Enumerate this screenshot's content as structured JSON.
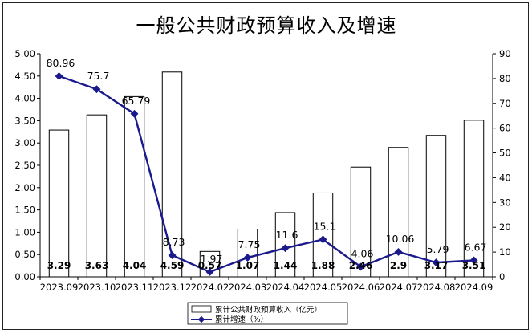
{
  "chart_data": {
    "type": "bar",
    "title": "一般公共财政预算收入及增速",
    "categories": [
      "2023.09",
      "2023.10",
      "2023.11",
      "2023.12",
      "2024.02",
      "2024.03",
      "2024.04",
      "2024.05",
      "2024.06",
      "2024.07",
      "2024.08",
      "2024.09"
    ],
    "series": [
      {
        "name": "累计公共财政预算收入（亿元）",
        "type": "bar",
        "axis": "left",
        "values": [
          3.29,
          3.63,
          4.04,
          4.59,
          0.57,
          1.07,
          1.44,
          1.88,
          2.46,
          2.9,
          3.17,
          3.51
        ],
        "labels": [
          "3.29",
          "3.63",
          "4.04",
          "4.59",
          "0.57",
          "1.07",
          "1.44",
          "1.88",
          "2.46",
          "2.9",
          "3.17",
          "3.51"
        ],
        "color": "#ffffff",
        "border": "#000000"
      },
      {
        "name": "累计增速（%）",
        "type": "line",
        "axis": "right",
        "values": [
          80.96,
          75.7,
          65.79,
          8.73,
          1.97,
          7.75,
          11.6,
          15.1,
          4.06,
          10.06,
          5.79,
          6.67
        ],
        "labels": [
          "80.96",
          "75.7",
          "65.79",
          "8.73",
          "1.97",
          "7.75",
          "11.6",
          "15.1",
          "4.06",
          "10.06",
          "5.79",
          "6.67"
        ],
        "color": "#1a1a8c"
      }
    ],
    "y_left": {
      "min": 0,
      "max": 5,
      "step": 0.5,
      "tick_labels": [
        "0.00",
        "0.50",
        "1.00",
        "1.50",
        "2.00",
        "2.50",
        "3.00",
        "3.50",
        "4.00",
        "4.50",
        "5.00"
      ]
    },
    "y_right": {
      "min": 0,
      "max": 90,
      "step": 10,
      "tick_labels": [
        "0",
        "10",
        "20",
        "30",
        "40",
        "50",
        "60",
        "70",
        "80",
        "90"
      ]
    },
    "grid": false,
    "legend_position": "bottom"
  }
}
